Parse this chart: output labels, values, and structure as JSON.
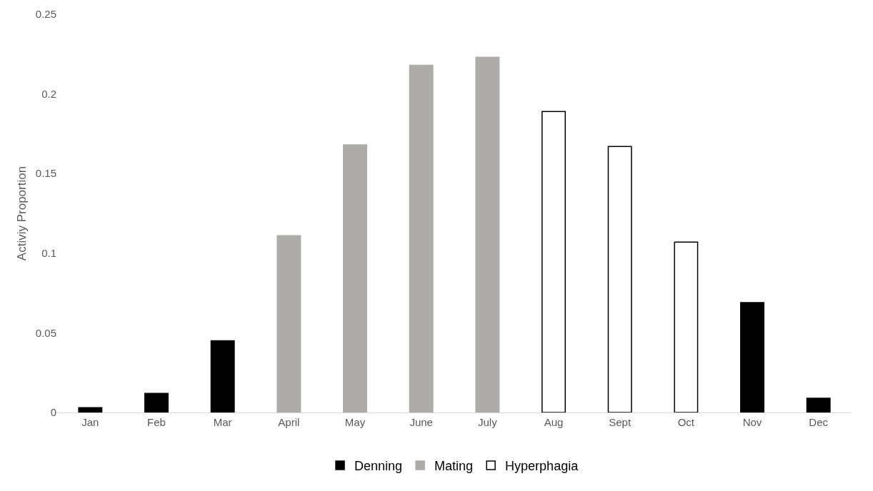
{
  "chart_data": {
    "type": "bar",
    "ylabel": "Activiy Proportion",
    "categories": [
      "Jan",
      "Feb",
      "Mar",
      "April",
      "May",
      "June",
      "July",
      "Aug",
      "Sept",
      "Oct",
      "Nov",
      "Dec"
    ],
    "series": [
      {
        "name": "Denning",
        "color": "#000000",
        "values": [
          0.003,
          0.012,
          0.045,
          null,
          null,
          null,
          null,
          null,
          null,
          null,
          0.069,
          0.009
        ]
      },
      {
        "name": "Mating",
        "color": "#aeabab",
        "values": [
          null,
          null,
          null,
          0.111,
          0.168,
          0.218,
          0.223,
          null,
          null,
          null,
          null,
          null
        ]
      },
      {
        "name": "Hyperphagia",
        "color": "#ffffff",
        "values": [
          null,
          null,
          null,
          null,
          null,
          null,
          null,
          0.189,
          0.167,
          0.107,
          null,
          null
        ]
      }
    ],
    "ylim": [
      0,
      0.25
    ],
    "yticks": [
      0,
      0.05,
      0.1,
      0.15,
      0.2,
      0.25
    ],
    "grid": false,
    "legend": "bottom"
  }
}
